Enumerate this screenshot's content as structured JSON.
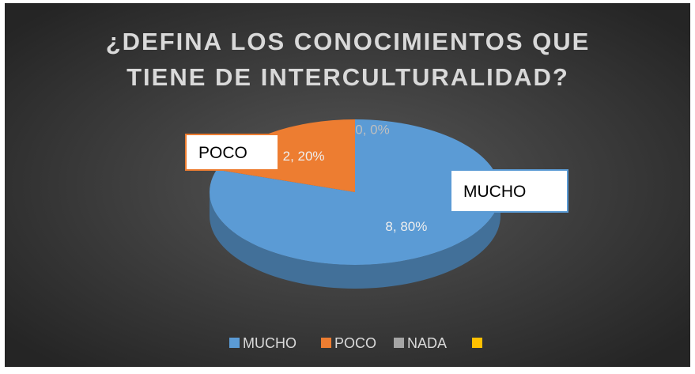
{
  "chart_data": {
    "type": "pie3d",
    "title": "¿DEFINA LOS CONOCIMIENTOS QUE TIENE DE INTERCULTURALIDAD?",
    "categories": [
      "MUCHO",
      "POCO",
      "NADA",
      null
    ],
    "values": [
      8,
      2,
      0,
      null
    ],
    "value_labels": [
      "8, 80%",
      "2, 20%",
      "0, 0%",
      null
    ],
    "colors": [
      "#5b9bd5",
      "#ed7d31",
      "#a5a5a5",
      "#ffc000"
    ],
    "legend": "bottom"
  }
}
